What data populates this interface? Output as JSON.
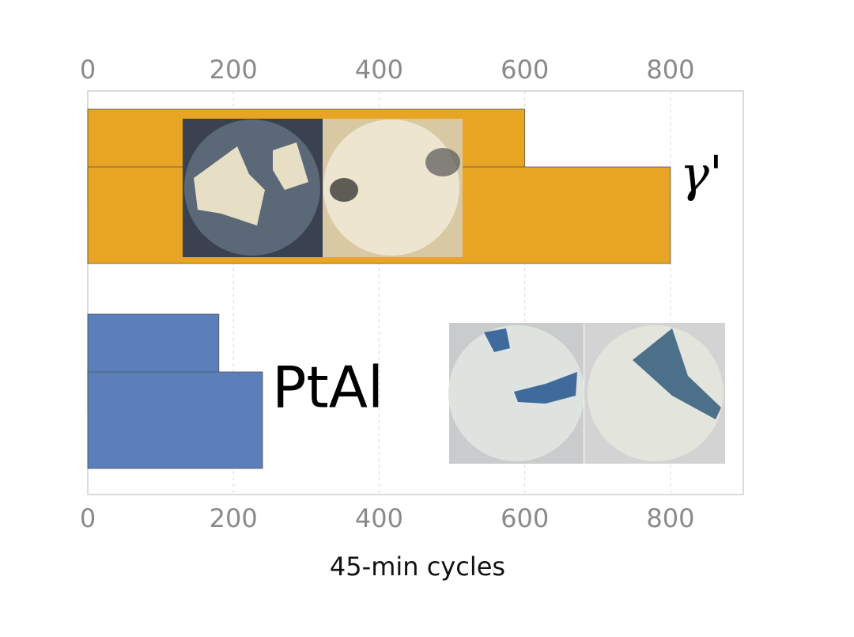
{
  "chart_data": {
    "type": "bar",
    "orientation": "horizontal",
    "x_label": "45-min cycles",
    "xlim": [
      0,
      900
    ],
    "xticks": [
      0,
      200,
      400,
      600,
      800
    ],
    "grid": true,
    "series": [
      {
        "name": "γ'",
        "color": "#e8a423",
        "values": [
          600,
          800
        ]
      },
      {
        "name": "PtAl",
        "color": "#5b7fba",
        "values": [
          180,
          240
        ]
      }
    ]
  }
}
